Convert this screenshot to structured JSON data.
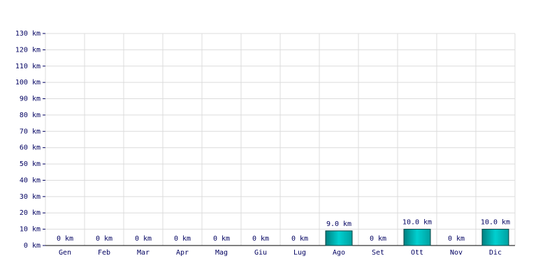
{
  "chart_data": {
    "type": "bar",
    "categories": [
      "Gen",
      "Feb",
      "Mar",
      "Apr",
      "Mag",
      "Giu",
      "Lug",
      "Ago",
      "Set",
      "Ott",
      "Nov",
      "Dic"
    ],
    "values": [
      0,
      0,
      0,
      0,
      0,
      0,
      0,
      9,
      0,
      10,
      0,
      10
    ],
    "value_labels": [
      "0 km",
      "0 km",
      "0 km",
      "0 km",
      "0 km",
      "0 km",
      "0 km",
      "9.0 km",
      "0 km",
      "10.0 km",
      "0 km",
      "10.0 km"
    ],
    "color": "#00d0d0",
    "ylim": [
      0,
      130
    ],
    "yticks": [
      {
        "value": 0,
        "label": "0 km"
      },
      {
        "value": 10,
        "label": "10 km"
      },
      {
        "value": 20,
        "label": "20 km"
      },
      {
        "value": 30,
        "label": "30 km"
      },
      {
        "value": 40,
        "label": "40 km"
      },
      {
        "value": 50,
        "label": "50 km"
      },
      {
        "value": 60,
        "label": "60 km"
      },
      {
        "value": 70,
        "label": "70 km"
      },
      {
        "value": 80,
        "label": "80 km"
      },
      {
        "value": 90,
        "label": "90 km"
      },
      {
        "value": 100,
        "label": "100 km"
      },
      {
        "value": 110,
        "label": "110 km"
      },
      {
        "value": 120,
        "label": "120 km"
      },
      {
        "value": 130,
        "label": "130 km"
      }
    ],
    "grid": true
  }
}
